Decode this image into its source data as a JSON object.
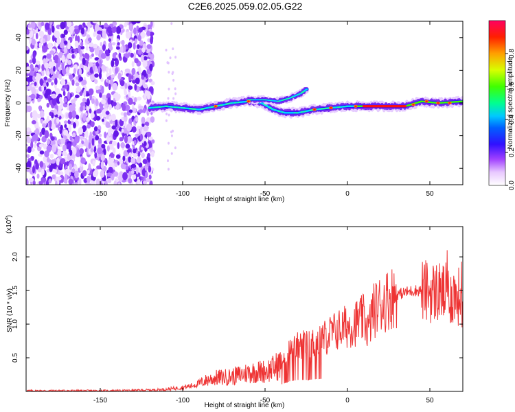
{
  "chart_data": [
    {
      "type": "heatmap",
      "title": "C2E6.2025.059.02.05.G22",
      "xlabel": "Height of straight line (km)",
      "ylabel": "Frequency (Hz)",
      "xlim": [
        -195,
        70
      ],
      "ylim": [
        -50,
        50
      ],
      "xticks": [
        "-150",
        "-100",
        "-50",
        "0",
        "50"
      ],
      "yticks": [
        "40",
        "20",
        "0",
        "-20",
        "-40"
      ],
      "colorbar": {
        "label": "Normalized spectral amplitude",
        "range": [
          0,
          1
        ],
        "ticks": [
          "0.0",
          "0.2",
          "0.4",
          "0.6",
          "0.8"
        ]
      },
      "signal_track": [
        {
          "x": -120,
          "y": -3
        },
        {
          "x": -110,
          "y": -2
        },
        {
          "x": -100,
          "y": -3
        },
        {
          "x": -90,
          "y": -4
        },
        {
          "x": -80,
          "y": -2
        },
        {
          "x": -70,
          "y": 0
        },
        {
          "x": -60,
          "y": 1
        },
        {
          "x": -52,
          "y": 0
        },
        {
          "x": -45,
          "y": -4
        },
        {
          "x": -38,
          "y": -6
        },
        {
          "x": -30,
          "y": -6
        },
        {
          "x": -20,
          "y": -4
        },
        {
          "x": -10,
          "y": -3
        },
        {
          "x": 0,
          "y": -2
        },
        {
          "x": 10,
          "y": -2
        },
        {
          "x": 20,
          "y": -2
        },
        {
          "x": 35,
          "y": -2
        },
        {
          "x": 45,
          "y": 1
        },
        {
          "x": 55,
          "y": 0
        },
        {
          "x": 70,
          "y": 1
        }
      ],
      "upper_branch": [
        {
          "x": -60,
          "y": 2
        },
        {
          "x": -50,
          "y": 2
        },
        {
          "x": -42,
          "y": 1
        },
        {
          "x": -35,
          "y": 3
        },
        {
          "x": -28,
          "y": 6
        },
        {
          "x": -24,
          "y": 9
        }
      ],
      "noise_region_x": [
        -195,
        -118
      ]
    },
    {
      "type": "line",
      "xlabel": "Height of straight line (km)",
      "ylabel": "SNR (10 * v/v)",
      "scale_note": "(x10",
      "scale_exp": "4",
      "scale_close": ")",
      "xlim": [
        -195,
        70
      ],
      "ylim": [
        0,
        2.45
      ],
      "xticks": [
        "-150",
        "-100",
        "-50",
        "0",
        "50"
      ],
      "yticks": [
        "0.5",
        "1.0",
        "1.5",
        "2.0"
      ],
      "series": [
        {
          "color": "#ee3333",
          "x": [
            -195,
            -180,
            -160,
            -140,
            -120,
            -110,
            -100,
            -95,
            -90,
            -85,
            -80,
            -70,
            -60,
            -50,
            -45,
            -40,
            -35,
            -30,
            -25,
            -20,
            -15,
            -10,
            -5,
            0,
            5,
            10,
            13,
            15,
            20,
            25,
            30,
            35,
            40,
            45,
            50,
            55,
            60,
            65,
            70
          ],
          "y": [
            0.01,
            0.01,
            0.01,
            0.01,
            0.02,
            0.03,
            0.06,
            0.08,
            0.12,
            0.17,
            0.2,
            0.22,
            0.28,
            0.3,
            0.34,
            0.42,
            0.6,
            0.68,
            0.68,
            0.72,
            0.78,
            0.86,
            0.92,
            0.97,
            1.02,
            1.08,
            0.9,
            1.18,
            1.3,
            1.38,
            1.44,
            1.47,
            1.5,
            1.5,
            1.48,
            1.48,
            1.45,
            1.42,
            1.4
          ]
        }
      ]
    }
  ]
}
